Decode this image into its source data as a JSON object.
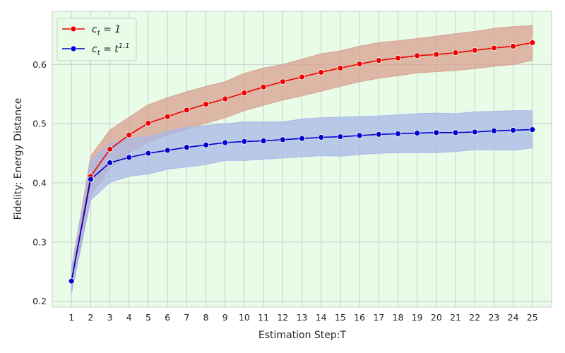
{
  "chart_data": {
    "type": "line",
    "title": "",
    "xlabel": "Estimation Step:T",
    "ylabel": "Fidelity: Energy Distance",
    "x": [
      1,
      2,
      3,
      4,
      5,
      6,
      7,
      8,
      9,
      10,
      11,
      12,
      13,
      14,
      15,
      16,
      17,
      18,
      19,
      20,
      21,
      22,
      23,
      24,
      25
    ],
    "xlim": [
      0,
      26
    ],
    "ylim": [
      0.19,
      0.69
    ],
    "yticks": [
      0.2,
      0.3,
      0.4,
      0.5,
      0.6
    ],
    "ytick_labels": [
      "0.2",
      "0.3",
      "0.4",
      "0.5",
      "0.6"
    ],
    "grid": true,
    "background": "#e8fce8",
    "grid_color": "#cccccc",
    "legend_position": "top-left",
    "series": [
      {
        "name": "c_t = 1",
        "legend_label": {
          "base": "c",
          "sub": "t",
          "rest": " = 1",
          "sup": ""
        },
        "color": "#ee0000",
        "band_color": "#d9a090",
        "values": [
          0.234,
          0.411,
          0.457,
          0.481,
          0.501,
          0.512,
          0.523,
          0.533,
          0.542,
          0.552,
          0.562,
          0.571,
          0.579,
          0.587,
          0.594,
          0.601,
          0.607,
          0.611,
          0.615,
          0.617,
          0.62,
          0.624,
          0.628,
          0.631,
          0.637
        ],
        "lower": [
          0.215,
          0.378,
          0.425,
          0.45,
          0.47,
          0.481,
          0.491,
          0.501,
          0.51,
          0.522,
          0.531,
          0.54,
          0.547,
          0.555,
          0.563,
          0.571,
          0.577,
          0.581,
          0.586,
          0.588,
          0.59,
          0.593,
          0.597,
          0.6,
          0.607
        ],
        "upper": [
          0.253,
          0.445,
          0.489,
          0.511,
          0.532,
          0.544,
          0.554,
          0.563,
          0.571,
          0.585,
          0.594,
          0.6,
          0.609,
          0.618,
          0.623,
          0.631,
          0.637,
          0.64,
          0.644,
          0.648,
          0.652,
          0.656,
          0.661,
          0.664,
          0.666
        ]
      },
      {
        "name": "c_t = t^1.1",
        "legend_label": {
          "base": "c",
          "sub": "t",
          "rest": " = t",
          "sup": "1.1"
        },
        "color": "#0000cc",
        "band_color": "#a8b8e8",
        "values": [
          0.234,
          0.406,
          0.434,
          0.443,
          0.45,
          0.455,
          0.46,
          0.464,
          0.468,
          0.47,
          0.471,
          0.473,
          0.475,
          0.477,
          0.478,
          0.48,
          0.482,
          0.483,
          0.484,
          0.485,
          0.485,
          0.486,
          0.488,
          0.489,
          0.49
        ],
        "lower": [
          0.213,
          0.371,
          0.401,
          0.411,
          0.415,
          0.423,
          0.427,
          0.431,
          0.438,
          0.438,
          0.44,
          0.442,
          0.444,
          0.446,
          0.445,
          0.448,
          0.45,
          0.451,
          0.451,
          0.451,
          0.453,
          0.456,
          0.456,
          0.455,
          0.459
        ],
        "upper": [
          0.256,
          0.438,
          0.466,
          0.476,
          0.478,
          0.487,
          0.494,
          0.497,
          0.5,
          0.503,
          0.503,
          0.503,
          0.508,
          0.51,
          0.511,
          0.512,
          0.513,
          0.515,
          0.517,
          0.518,
          0.517,
          0.52,
          0.521,
          0.522,
          0.522
        ]
      }
    ]
  }
}
